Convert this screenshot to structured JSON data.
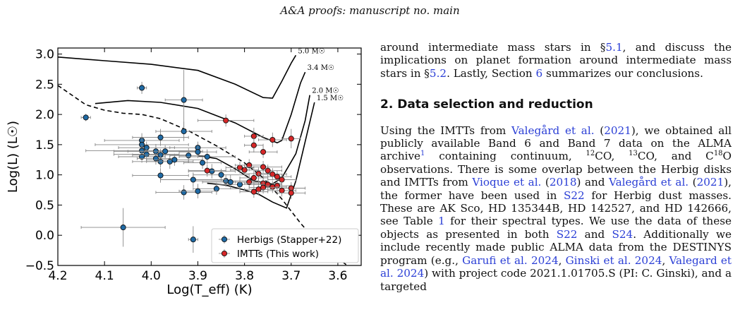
{
  "header": {
    "text": "A&A proofs: manuscript no. main"
  },
  "text_column": {
    "intro_line1": "around intermediate mass stars in §",
    "intro_ref1": "5.1",
    "intro_line2": ", and discuss the implications on planet formation around intermediate mass stars in §",
    "intro_ref2": "5.2",
    "intro_line3": ". Lastly, Section ",
    "intro_ref3": "6",
    "intro_line4": " summarizes our conclusions.",
    "section_title": "2. Data selection and reduction",
    "p1": "Using the IMTTs from ",
    "p1_cite1": "Valegård et al.",
    "p1_paren_open": " (",
    "p1_year1": "2021",
    "p1_a": "), we obtained all publicly available Band 6 and Band 7 data on the ALMA archive",
    "p1_fn": "1",
    "p1_b": " containing continuum, ",
    "iso12": "12",
    "p1_c": "CO, ",
    "iso13": "13",
    "p1_d": "CO, and C",
    "iso18": "18",
    "p1_e": "O observations. There is some overlap between the Herbig disks and IMTTs from ",
    "p1_cite2": "Vioque et al.",
    "p1_year2": "2018",
    "p1_f": ") and ",
    "p1_cite3": "Valegård et al.",
    "p1_year3": "2021",
    "p1_g": "), the former have been used in ",
    "p1_s22": "S22",
    "p1_h": " for Herbig dust masses. These are AK Sco, HD 135344B, HD 142527, and HD 142666, see Table ",
    "p1_table": "1",
    "p1_i": " for their spectral types. We use the data of these objects as presented in both ",
    "p1_s22b": "S22",
    "p1_and": " and ",
    "p1_s24": "S24",
    "p1_j": ". Additionally we include recently made public ALMA data from the DESTINYS program (e.g., ",
    "p1_cite4": "Garufi et al. 2024",
    "p1_comma1": ", ",
    "p1_cite5": "Ginski et al. 2024",
    "p1_comma2": ", ",
    "p1_cite6": "Valegard et al. 2024",
    "p1_k": ") with project code 2021.1.01705.S (PI: C. Ginski), and a targeted"
  },
  "chart_data": {
    "type": "scatter",
    "xlabel": "Log(T_eff) (K)",
    "ylabel": "Log(L) (L☉)",
    "xlim": [
      4.2,
      3.55
    ],
    "ylim": [
      -0.5,
      3.1
    ],
    "xticks": [
      4.2,
      4.1,
      4.0,
      3.9,
      3.8,
      3.7,
      3.6
    ],
    "xtick_labels": [
      "4.2",
      "4.1",
      "4.0",
      "3.9",
      "3.8",
      "3.7",
      "3.6"
    ],
    "yticks": [
      -0.5,
      0.0,
      0.5,
      1.0,
      1.5,
      2.0,
      2.5,
      3.0
    ],
    "ytick_labels": [
      "−0.5",
      "0.0",
      "0.5",
      "1.0",
      "1.5",
      "2.0",
      "2.5",
      "3.0"
    ],
    "legend_position": "bottom-right",
    "colors": {
      "herbig": "#1f6aa5",
      "imtt": "#d62728",
      "track": "#000000",
      "error": "#888888"
    },
    "series": [
      {
        "name": "Herbigs (Stapper+22)",
        "marker": "herbig",
        "points": [
          [
            4.14,
            1.95,
            0.01,
            0.06
          ],
          [
            4.02,
            2.44,
            0.01,
            0.1
          ],
          [
            3.93,
            2.24,
            0.04,
            0.5
          ],
          [
            4.06,
            0.13,
            0.09,
            0.32
          ],
          [
            3.91,
            -0.07,
            0.01,
            0.22
          ],
          [
            4.02,
            1.57,
            0.08,
            0.12
          ],
          [
            4.02,
            1.5,
            0.1,
            0.14
          ],
          [
            4.01,
            1.45,
            0.06,
            0.1
          ],
          [
            4.02,
            1.4,
            0.12,
            0.1
          ],
          [
            4.01,
            1.34,
            0.07,
            0.1
          ],
          [
            4.02,
            1.3,
            0.05,
            0.1
          ],
          [
            3.99,
            1.39,
            0.09,
            0.12
          ],
          [
            3.98,
            1.33,
            0.06,
            0.1
          ],
          [
            3.99,
            1.27,
            0.04,
            0.1
          ],
          [
            3.98,
            1.22,
            0.06,
            0.1
          ],
          [
            3.96,
            1.22,
            0.05,
            0.12
          ],
          [
            3.95,
            1.25,
            0.06,
            0.1
          ],
          [
            3.98,
            1.62,
            0.06,
            0.14
          ],
          [
            3.93,
            1.72,
            0.06,
            0.16
          ],
          [
            3.97,
            1.39,
            0.08,
            0.1
          ],
          [
            3.92,
            1.32,
            0.04,
            0.12
          ],
          [
            3.9,
            1.45,
            0.06,
            0.1
          ],
          [
            3.9,
            1.38,
            0.04,
            0.1
          ],
          [
            3.88,
            1.3,
            0.06,
            0.12
          ],
          [
            3.89,
            1.2,
            0.04,
            0.1
          ],
          [
            3.87,
            1.06,
            0.05,
            0.12
          ],
          [
            3.85,
            1.0,
            0.06,
            0.1
          ],
          [
            3.84,
            0.9,
            0.07,
            0.1
          ],
          [
            3.81,
            0.84,
            0.05,
            0.1
          ],
          [
            3.86,
            0.77,
            0.05,
            0.1
          ],
          [
            3.83,
            0.88,
            0.06,
            0.12
          ],
          [
            3.91,
            0.92,
            0.07,
            0.12
          ],
          [
            3.93,
            0.71,
            0.06,
            0.12
          ],
          [
            3.9,
            0.73,
            0.04,
            0.12
          ],
          [
            3.98,
            0.99,
            0.06,
            0.12
          ]
        ]
      },
      {
        "name": "IMTTs (This work)",
        "marker": "imtt",
        "points": [
          [
            3.84,
            1.9,
            0.06,
            0.1
          ],
          [
            3.78,
            1.64,
            0.02,
            0.14
          ],
          [
            3.78,
            1.49,
            0.02,
            0.12
          ],
          [
            3.74,
            1.58,
            0.03,
            0.12
          ],
          [
            3.7,
            1.6,
            0.02,
            0.16
          ],
          [
            3.76,
            1.38,
            0.03,
            0.1
          ],
          [
            3.81,
            1.12,
            0.03,
            0.1
          ],
          [
            3.8,
            1.08,
            0.03,
            0.1
          ],
          [
            3.79,
            1.16,
            0.03,
            0.1
          ],
          [
            3.77,
            1.02,
            0.03,
            0.1
          ],
          [
            3.76,
            1.13,
            0.04,
            0.1
          ],
          [
            3.75,
            1.07,
            0.03,
            0.1
          ],
          [
            3.74,
            1.01,
            0.03,
            0.1
          ],
          [
            3.73,
            0.97,
            0.03,
            0.1
          ],
          [
            3.72,
            0.92,
            0.03,
            0.1
          ],
          [
            3.78,
            0.95,
            0.03,
            0.1
          ],
          [
            3.79,
            0.88,
            0.03,
            0.1
          ],
          [
            3.76,
            0.86,
            0.04,
            0.1
          ],
          [
            3.75,
            0.84,
            0.03,
            0.1
          ],
          [
            3.73,
            0.82,
            0.03,
            0.1
          ],
          [
            3.74,
            0.8,
            0.03,
            0.1
          ],
          [
            3.76,
            0.79,
            0.03,
            0.1
          ],
          [
            3.7,
            0.78,
            0.03,
            0.1
          ],
          [
            3.77,
            0.76,
            0.03,
            0.1
          ],
          [
            3.72,
            0.74,
            0.03,
            0.1
          ],
          [
            3.7,
            0.7,
            0.03,
            0.1
          ],
          [
            3.78,
            0.72,
            0.03,
            0.1
          ],
          [
            3.88,
            1.07,
            0.04,
            0.1
          ]
        ]
      }
    ],
    "tracks": [
      {
        "label": "5.0 M☉",
        "mass": "5.0",
        "points": [
          [
            4.2,
            2.95
          ],
          [
            4.1,
            2.89
          ],
          [
            4.0,
            2.83
          ],
          [
            3.9,
            2.73
          ],
          [
            3.82,
            2.5
          ],
          [
            3.76,
            2.28
          ],
          [
            3.74,
            2.27
          ],
          [
            3.72,
            2.55
          ],
          [
            3.7,
            2.85
          ],
          [
            3.69,
            2.98
          ]
        ]
      },
      {
        "label": "3.4 M☉",
        "mass": "3.4",
        "points": [
          [
            4.12,
            2.18
          ],
          [
            4.05,
            2.23
          ],
          [
            3.98,
            2.2
          ],
          [
            3.9,
            2.1
          ],
          [
            3.82,
            1.86
          ],
          [
            3.76,
            1.62
          ],
          [
            3.73,
            1.53
          ],
          [
            3.72,
            1.57
          ],
          [
            3.7,
            2.0
          ],
          [
            3.68,
            2.52
          ],
          [
            3.67,
            2.7
          ]
        ]
      },
      {
        "label": "2.0 M☉",
        "mass": "2.0",
        "points": [
          [
            3.9,
            1.32
          ],
          [
            3.86,
            1.27
          ],
          [
            3.82,
            1.1
          ],
          [
            3.78,
            0.9
          ],
          [
            3.74,
            0.85
          ],
          [
            3.72,
            0.95
          ],
          [
            3.69,
            1.35
          ],
          [
            3.67,
            1.9
          ],
          [
            3.66,
            2.32
          ]
        ]
      },
      {
        "label": "1.5 M☉",
        "mass": "1.5",
        "points": [
          [
            3.88,
            0.86
          ],
          [
            3.84,
            0.83
          ],
          [
            3.8,
            0.75
          ],
          [
            3.77,
            0.68
          ],
          [
            3.74,
            0.55
          ],
          [
            3.71,
            0.45
          ],
          [
            3.69,
            0.9
          ],
          [
            3.67,
            1.55
          ],
          [
            3.65,
            2.2
          ]
        ]
      }
    ],
    "zams_dashed": [
      [
        4.2,
        2.48
      ],
      [
        4.14,
        2.16
      ],
      [
        4.1,
        2.07
      ],
      [
        4.06,
        2.02
      ],
      [
        4.02,
        2.0
      ],
      [
        3.98,
        1.93
      ],
      [
        3.92,
        1.73
      ],
      [
        3.86,
        1.48
      ],
      [
        3.8,
        1.2
      ],
      [
        3.76,
        0.95
      ],
      [
        3.72,
        0.6
      ],
      [
        3.68,
        0.2
      ],
      [
        3.64,
        -0.15
      ],
      [
        3.58,
        -0.5
      ]
    ]
  }
}
